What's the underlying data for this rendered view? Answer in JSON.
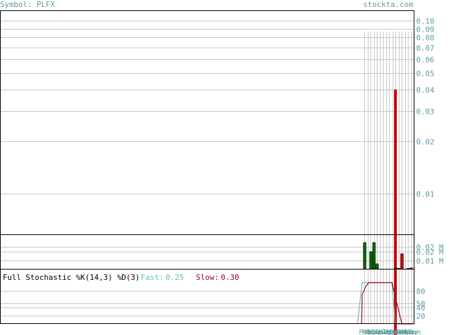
{
  "header": {
    "symbol_label": "Symbol: PLFX",
    "site": "stockta.com"
  },
  "stochastic": {
    "title": "Full Stochastic %K(14,3) %D(3)",
    "fast_label": "Fast:",
    "fast_value": "0.25",
    "slow_label": "Slow:",
    "slow_value": "0.30"
  },
  "colors": {
    "frame": "#000000",
    "grid": "#c8c8c8",
    "axis_text": "#5f9ea0",
    "price_bar": "#cc0000",
    "volume_up": "#006600",
    "volume_down": "#cc0000",
    "fast_line": "#5fbfbf",
    "slow_line": "#990033"
  },
  "chart_data": [
    {
      "type": "bar",
      "panel": "price",
      "scale": "log",
      "y_ticks": [
        "0.10",
        "0.09",
        "0.08",
        "0.07",
        "0.06",
        "0.05",
        "0.04",
        "0.03",
        "0.02",
        "0.01"
      ],
      "y_tick_values": [
        0.1,
        0.09,
        0.08,
        0.07,
        0.06,
        0.05,
        0.04,
        0.03,
        0.02,
        0.01
      ],
      "ylim": [
        0.0058,
        0.115
      ],
      "bars": [
        {
          "slot": 10,
          "low": 0.0058,
          "high": 0.04
        }
      ]
    },
    {
      "type": "bar",
      "panel": "volume",
      "y_ticks": [
        "0.02 M",
        "0.02 M",
        "0.01 M"
      ],
      "y_tick_values": [
        0.022,
        0.017,
        0.0085
      ],
      "ylim": [
        0,
        0.03
      ],
      "values": [
        0.026,
        0,
        0.017,
        0.026,
        0.005,
        0,
        0,
        0,
        0,
        0,
        0.001,
        0.0005,
        0.015,
        0,
        0.0005,
        0.001
      ],
      "colors": [
        "up",
        "up",
        "up",
        "up",
        "up",
        "up",
        "up",
        "up",
        "up",
        "up",
        "up",
        "down",
        "down",
        "down",
        "down",
        "down"
      ]
    },
    {
      "type": "line",
      "panel": "stochastic",
      "y_ticks": [
        "80",
        "50",
        "40",
        "20"
      ],
      "y_tick_values": [
        80,
        50,
        40,
        20
      ],
      "ylim": [
        0,
        100
      ],
      "series": [
        {
          "name": "Fast",
          "values": [
            0.3,
            100,
            100,
            100,
            100,
            100,
            100,
            100,
            100,
            100,
            100,
            0.3,
            0.3,
            0.3,
            0.3,
            0.3,
            0.25
          ]
        },
        {
          "name": "Slow",
          "values": [
            0.3,
            70,
            90,
            100,
            100,
            100,
            100,
            100,
            100,
            100,
            100,
            66,
            33,
            0.3,
            0.3,
            0.3,
            0.3
          ]
        }
      ]
    }
  ],
  "x_axis": {
    "labels": [
      "Feb",
      "Mar",
      "Apr",
      "May",
      "Jun",
      "Jul",
      "Aug",
      "Sep",
      "Oct",
      "Nov",
      "Dec",
      "Jan",
      "Feb",
      "Mar",
      "Apr",
      "May",
      "Jun"
    ]
  }
}
